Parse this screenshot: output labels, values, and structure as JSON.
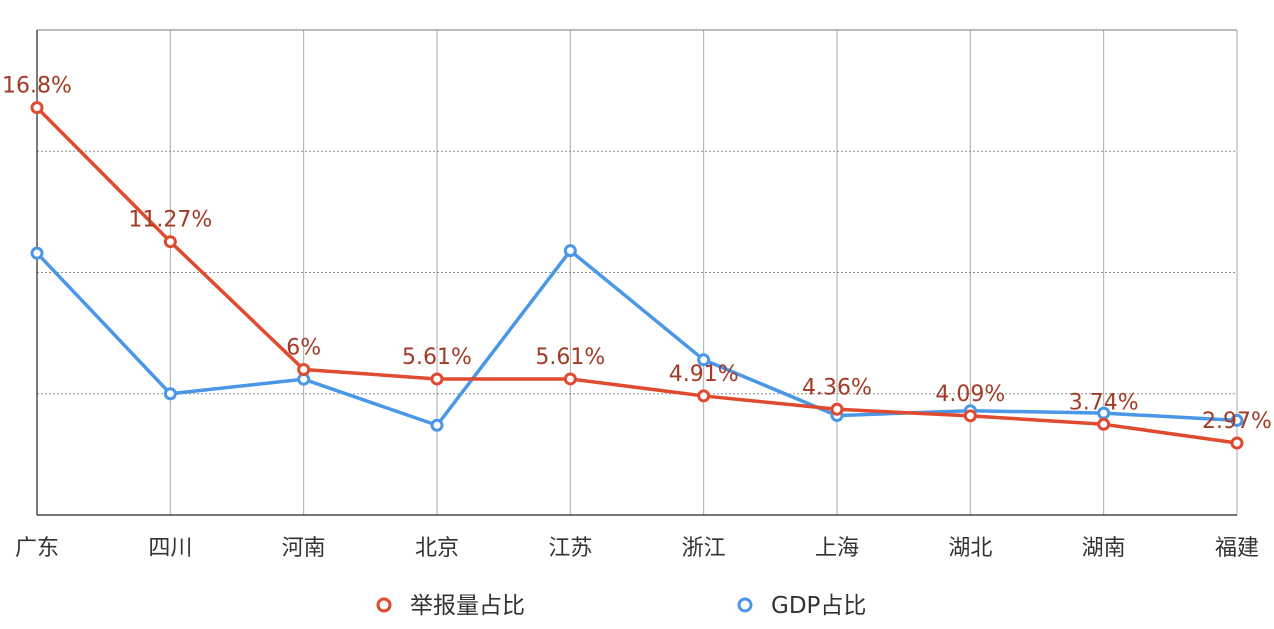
{
  "chart_data": {
    "type": "line",
    "title": "",
    "xlabel": "",
    "ylabel": "",
    "categories": [
      "广东",
      "四川",
      "河南",
      "北京",
      "江苏",
      "浙江",
      "上海",
      "湖北",
      "湖南",
      "福建"
    ],
    "ylim": [
      0,
      20
    ],
    "grid": true,
    "legend_position": "bottom",
    "series": [
      {
        "name": "举报量占比",
        "color": "#e04a2e",
        "values": [
          16.8,
          11.27,
          6.0,
          5.61,
          5.61,
          4.91,
          4.36,
          4.09,
          3.74,
          2.97
        ],
        "data_labels": [
          "16.8%",
          "11.27%",
          "6%",
          "5.61%",
          "5.61%",
          "4.91%",
          "4.36%",
          "4.09%",
          "3.74%",
          "2.97%"
        ]
      },
      {
        "name": "GDP占比",
        "color": "#4a97e8",
        "values": [
          10.8,
          5.0,
          5.6,
          3.7,
          10.9,
          6.4,
          4.1,
          4.3,
          4.2,
          3.9
        ]
      }
    ]
  }
}
